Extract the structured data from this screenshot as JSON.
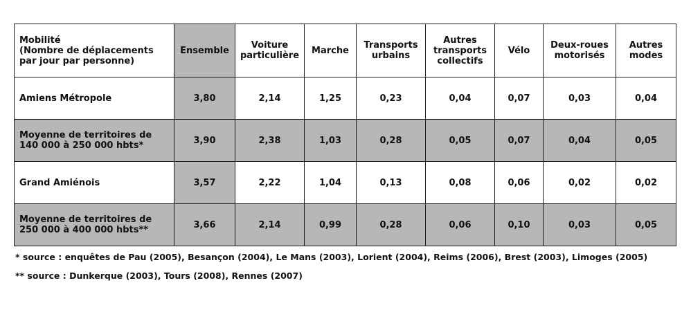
{
  "table": {
    "headers": {
      "first_line1": "Mobilité",
      "first_line2": "(Nombre de déplacements par jour par personne)",
      "columns": [
        "Ensemble",
        "Voiture particulière",
        "Marche",
        "Transports urbains",
        "Autres transports collectifs",
        "Vélo",
        "Deux-roues motorisés",
        "Autres modes"
      ]
    },
    "rows": [
      {
        "label": "Amiens Métropole",
        "values": [
          "3,80",
          "2,14",
          "1,25",
          "0,23",
          "0,04",
          "0,07",
          "0,03",
          "0,04"
        ]
      },
      {
        "label": "Moyenne de territoires de 140 000 à 250 000 hbts*",
        "values": [
          "3,90",
          "2,38",
          "1,03",
          "0,28",
          "0,05",
          "0,07",
          "0,04",
          "0,05"
        ]
      },
      {
        "label": "Grand Amiénois",
        "values": [
          "3,57",
          "2,22",
          "1,04",
          "0,13",
          "0,08",
          "0,06",
          "0,02",
          "0,02"
        ]
      },
      {
        "label": "Moyenne de territoires de 250 000 à 400 000 hbts**",
        "values": [
          "3,66",
          "2,14",
          "0,99",
          "0,28",
          "0,06",
          "0,10",
          "0,03",
          "0,05"
        ]
      }
    ]
  },
  "footnotes": [
    "* source : enquêtes de Pau (2005), Besançon (2004), Le Mans (2003), Lorient (2004), Reims (2006), Brest (2003), Limoges (2005)",
    "** source : Dunkerque (2003), Tours (2008), Rennes (2007)"
  ],
  "colors": {
    "shade": "#b7b7b7",
    "border": "#1a1a1a",
    "text": "#111111"
  }
}
